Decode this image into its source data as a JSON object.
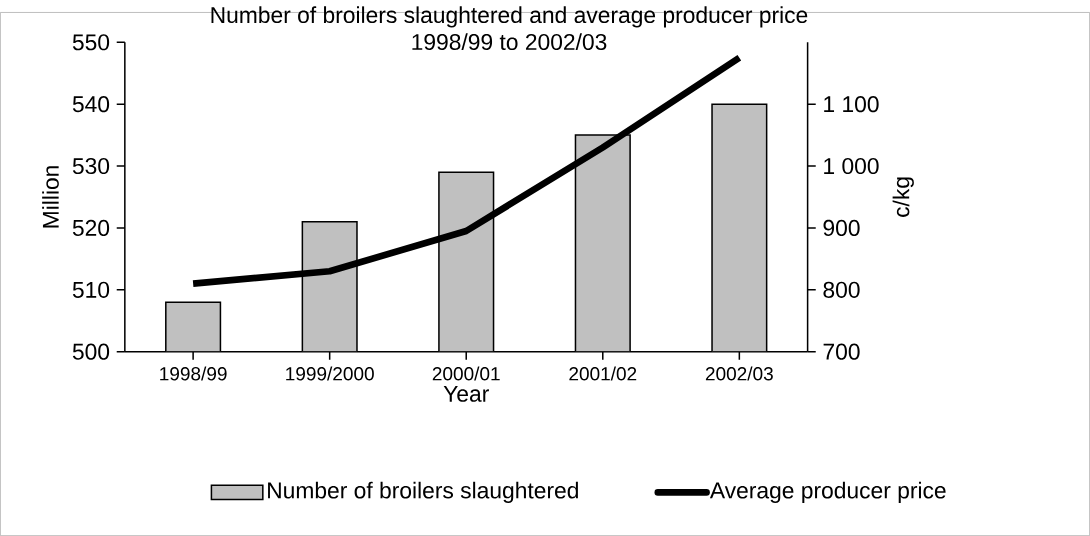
{
  "chart_data": {
    "type": "bar",
    "title": "Number of broilers slaughtered and average producer price",
    "subtitle": "1998/99 to 2002/03",
    "xlabel": "Year",
    "ylabel": "Million",
    "y2label": "c/kg",
    "categories": [
      "1998/99",
      "1999/2000",
      "2000/01",
      "2001/02",
      "2002/03"
    ],
    "series": [
      {
        "name": "Number of broilers slaughtered",
        "color": "#c0c0c0",
        "values": [
          508,
          521,
          529,
          535,
          540
        ]
      },
      {
        "name": "Average producer price",
        "type": "line",
        "axis": "y2",
        "color": "#000000",
        "values": [
          810,
          830,
          895,
          1030,
          1175
        ]
      }
    ],
    "ylim": [
      500,
      550
    ],
    "yticks": [
      500,
      510,
      520,
      530,
      540,
      550
    ],
    "y2lim": [
      700,
      1200
    ],
    "y2ticks": [
      700,
      800,
      900,
      {
        "value": 1000,
        "label": "1 000"
      },
      {
        "value": 1100,
        "label": "1 100"
      }
    ],
    "legend": "bottom",
    "grid": false
  }
}
